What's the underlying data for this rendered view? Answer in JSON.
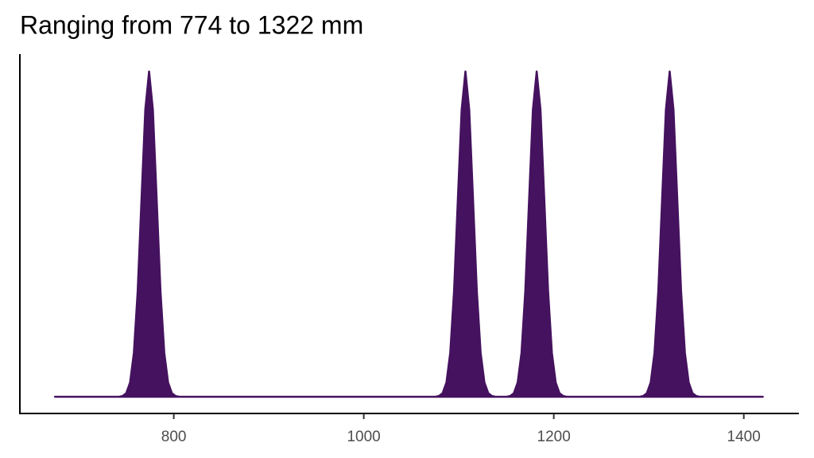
{
  "chart_data": {
    "type": "area",
    "title": "Ranging from 774 to 1322 mm",
    "color": "#45125f",
    "x": [
      675,
      742,
      746,
      750,
      754,
      758,
      762,
      766,
      770,
      774,
      778,
      782,
      786,
      790,
      794,
      798,
      802,
      806,
      1075,
      1079,
      1083,
      1087,
      1091,
      1095,
      1099,
      1103,
      1107,
      1111,
      1115,
      1119,
      1123,
      1127,
      1131,
      1135,
      1139,
      1145,
      1150,
      1154,
      1158,
      1162,
      1166,
      1170,
      1174,
      1178,
      1182,
      1186,
      1190,
      1194,
      1198,
      1202,
      1206,
      1210,
      1214,
      1290,
      1294,
      1298,
      1302,
      1306,
      1310,
      1314,
      1318,
      1322,
      1326,
      1330,
      1334,
      1338,
      1342,
      1346,
      1350,
      1354,
      1420
    ],
    "values": [
      0,
      0,
      3e-05,
      0.00014,
      0.00055,
      0.00169,
      0.00406,
      0.00758,
      0.01103,
      0.0125,
      0.01103,
      0.00758,
      0.00406,
      0.00169,
      0.00055,
      0.00014,
      3e-05,
      0,
      0,
      3e-05,
      0.00014,
      0.00055,
      0.00169,
      0.00406,
      0.00758,
      0.01103,
      0.0125,
      0.01103,
      0.00758,
      0.00406,
      0.00169,
      0.00055,
      0.00014,
      3e-05,
      0,
      0,
      0,
      3e-05,
      0.00014,
      0.00055,
      0.00169,
      0.00406,
      0.00758,
      0.01103,
      0.0125,
      0.01103,
      0.00758,
      0.00406,
      0.00169,
      0.00055,
      0.00014,
      3e-05,
      0,
      0,
      3e-05,
      0.00014,
      0.00055,
      0.00169,
      0.00406,
      0.00758,
      0.01103,
      0.0125,
      0.01103,
      0.00758,
      0.00406,
      0.00169,
      0.00055,
      0.00014,
      3e-05,
      0,
      0
    ],
    "xlim": [
      638,
      1458
    ],
    "xticks": [
      800,
      1000,
      1200,
      1400
    ],
    "ylim": [
      -0.00064,
      0.01317
    ]
  }
}
